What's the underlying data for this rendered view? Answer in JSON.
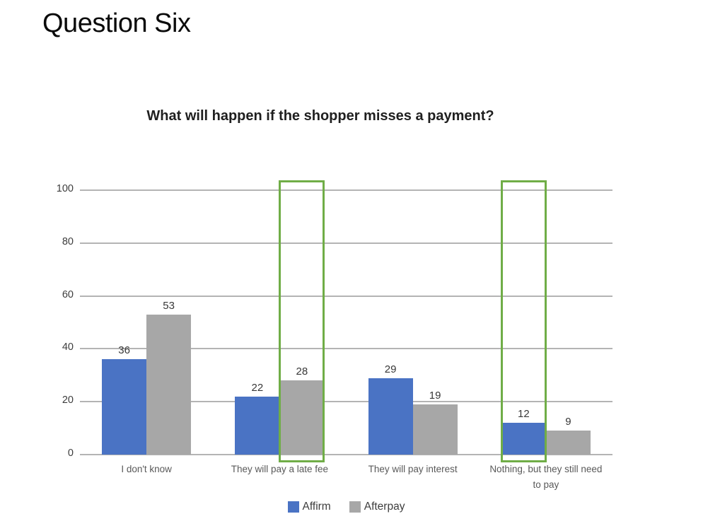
{
  "page": {
    "title": "Question Six"
  },
  "chart_data": {
    "type": "bar",
    "title": "What will happen if the shopper misses a payment?",
    "categories": [
      "I don't know",
      "They will pay a late fee",
      "They will pay interest",
      "Nothing, but they still need to pay"
    ],
    "series": [
      {
        "name": "Affirm",
        "color": "#4a73c4",
        "values": [
          36,
          22,
          29,
          12
        ]
      },
      {
        "name": "Afterpay",
        "color": "#a7a7a7",
        "values": [
          53,
          28,
          19,
          9
        ]
      }
    ],
    "ylabel": "",
    "xlabel": "",
    "ylim": [
      0,
      100
    ],
    "yticks": [
      0,
      20,
      40,
      60,
      80,
      100
    ],
    "grid": true,
    "data_labels": true,
    "legend_position": "bottom",
    "annotations": [
      {
        "type": "highlight-box",
        "category": "They will pay a late fee",
        "series": "Afterpay",
        "color": "#70ad47"
      },
      {
        "type": "highlight-box",
        "category": "Nothing, but they still need to pay",
        "series": "Affirm",
        "color": "#70ad47"
      }
    ]
  }
}
